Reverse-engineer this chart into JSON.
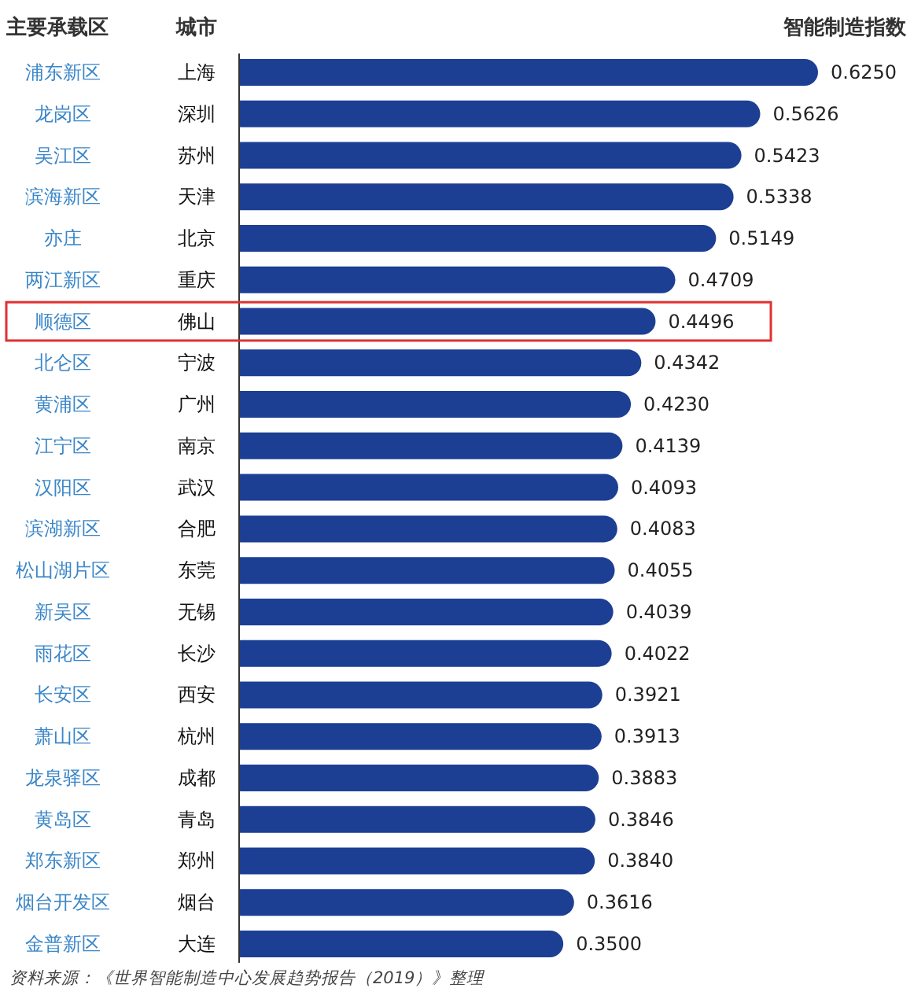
{
  "chart_data": {
    "type": "bar",
    "orientation": "horizontal",
    "xlabel": "智能制造指数",
    "ylabel": "城市",
    "categories": [
      "上海",
      "深圳",
      "苏州",
      "天津",
      "北京",
      "重庆",
      "佛山",
      "宁波",
      "广州",
      "南京",
      "武汉",
      "合肥",
      "东莞",
      "无锡",
      "长沙",
      "西安",
      "杭州",
      "成都",
      "青岛",
      "郑州",
      "烟台",
      "大连"
    ],
    "values": [
      0.625,
      0.5626,
      0.5423,
      0.5338,
      0.5149,
      0.4709,
      0.4496,
      0.4342,
      0.423,
      0.4139,
      0.4093,
      0.4083,
      0.4055,
      0.4039,
      0.4022,
      0.3921,
      0.3913,
      0.3883,
      0.3846,
      0.384,
      0.3616,
      0.35
    ],
    "value_labels": [
      "0.6250",
      "0.5626",
      "0.5423",
      "0.5338",
      "0.5149",
      "0.4709",
      "0.4496",
      "0.4342",
      "0.4230",
      "0.4139",
      "0.4093",
      "0.4083",
      "0.4055",
      "0.4039",
      "0.4022",
      "0.3921",
      "0.3913",
      "0.3883",
      "0.3846",
      "0.3840",
      "0.3616",
      "0.3500"
    ],
    "color": "#1c3f94",
    "annotations": [
      "主要承载区",
      "浦东新区",
      "龙岗区",
      "吴江区",
      "滨海新区",
      "亦庄",
      "两江新区",
      "顺德区",
      "北仑区",
      "黄浦区",
      "江宁区",
      "汉阳区",
      "滨湖新区",
      "松山湖片区",
      "新吴区",
      "雨花区",
      "长安区",
      "萧山区",
      "龙泉驿区",
      "黄岛区",
      "郑东新区",
      "烟台开发区",
      "金普新区",
      "资料来源：《世界智能制造中心发展趋势报告（2019）》整理"
    ]
  }
}
